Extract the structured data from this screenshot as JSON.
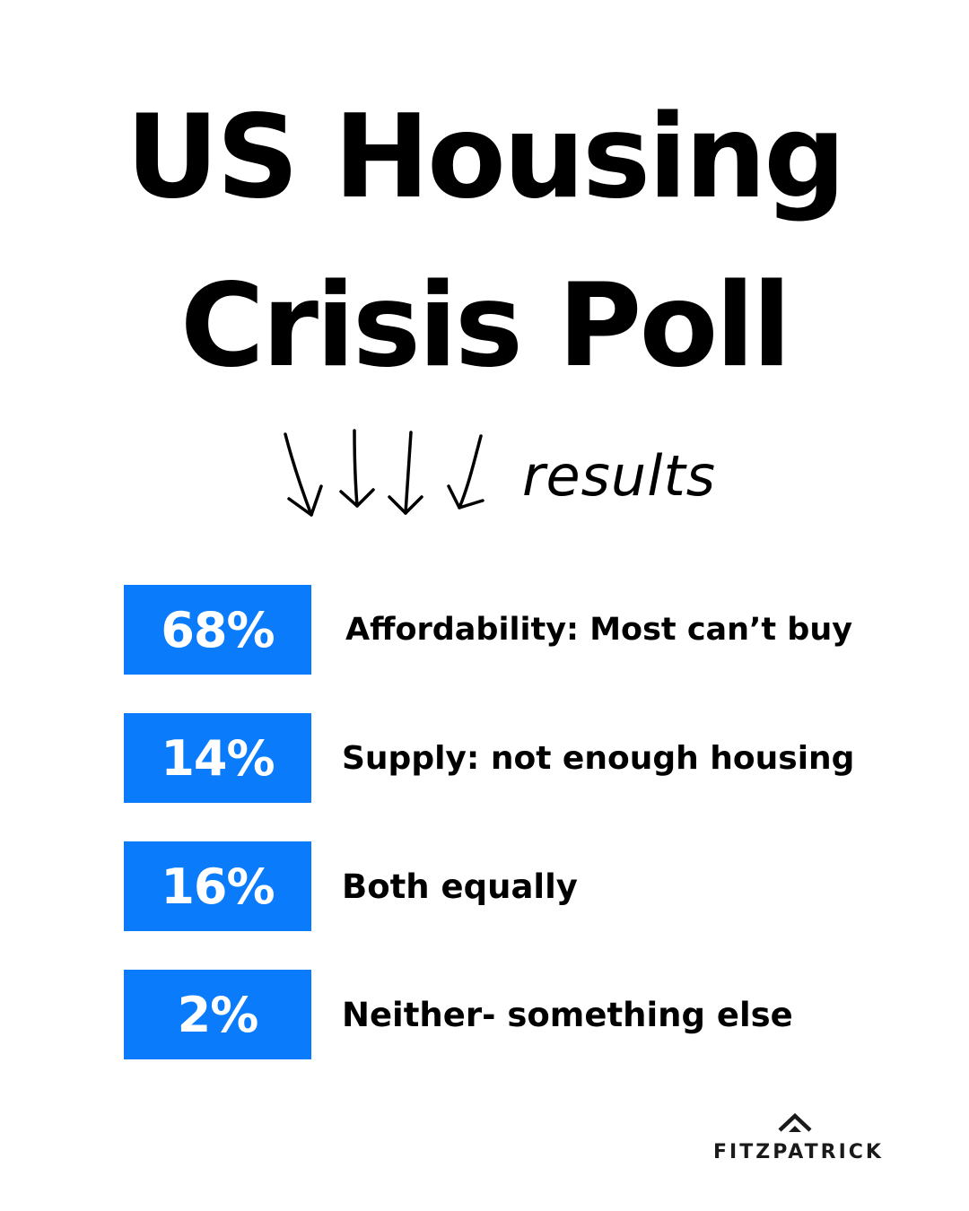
{
  "header": {
    "title_line_1": "US Housing",
    "title_line_2": "Crisis Poll",
    "subtitle": "results",
    "arrow_icon": "hand-drawn-down-arrows-icon"
  },
  "poll": {
    "accent_color": "#0a7cfb",
    "results": [
      {
        "percent": "68%",
        "value": 68,
        "answer": "Affordability: Most can’t buy"
      },
      {
        "percent": "14%",
        "value": 14,
        "answer": "Supply: not enough housing"
      },
      {
        "percent": "16%",
        "value": 16,
        "answer": "Both equally"
      },
      {
        "percent": "2%",
        "value": 2,
        "answer": "Neither- something else"
      }
    ]
  },
  "brand": {
    "name": "FITZPATRICK",
    "logo_icon": "roof-chevron-icon"
  }
}
